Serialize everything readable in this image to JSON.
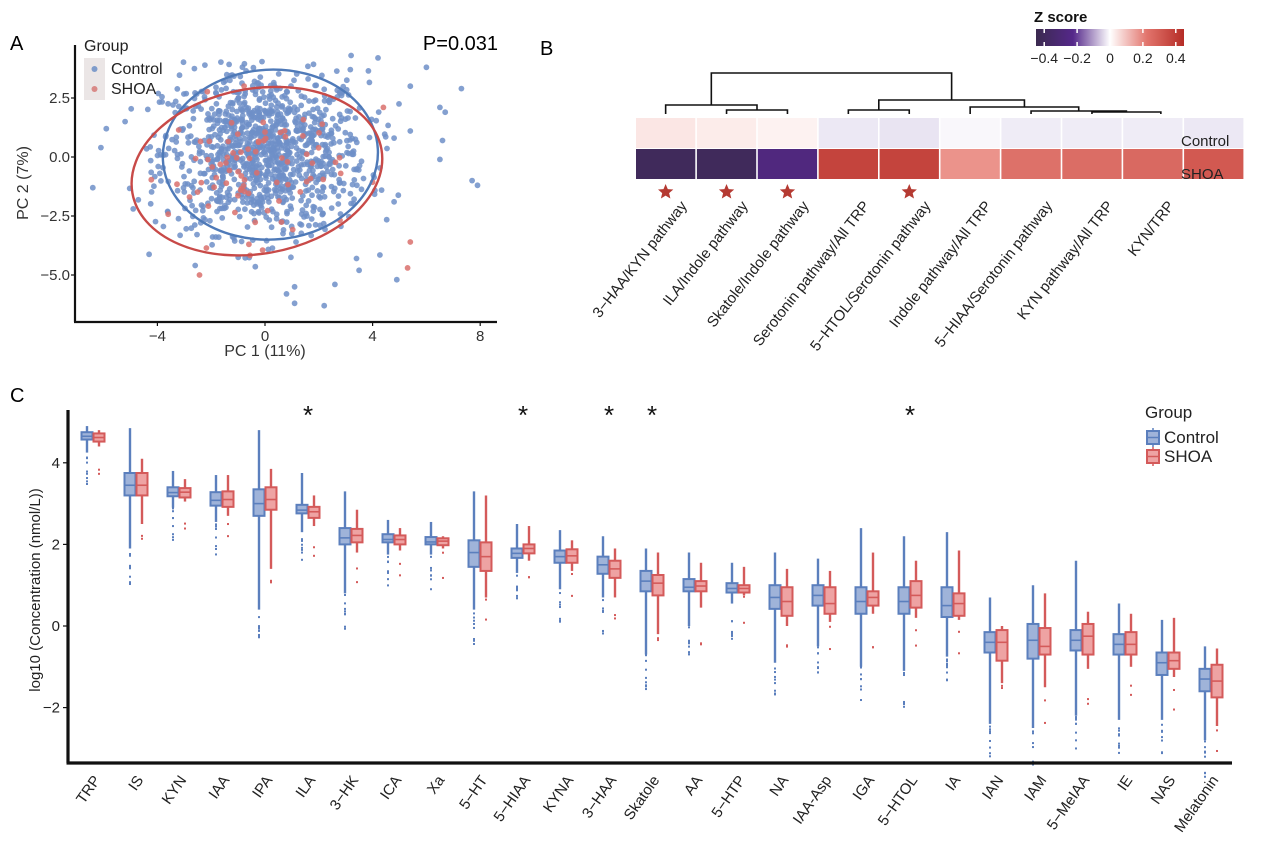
{
  "colors": {
    "control": "#5b7fbd",
    "control_fill": "#9fb3d9",
    "shoa": "#d45a5a",
    "shoa_fill": "#eea3a3",
    "star": "#b53a32",
    "axis": "#111111"
  },
  "chart_data": [
    {
      "panel_label": "A",
      "type": "scatter",
      "title": "",
      "annotation": "P=0.031",
      "xlabel": "PC 1 (11%)",
      "ylabel": "PC 2 (7%)",
      "xlim": [
        -6.8,
        8.4
      ],
      "ylim": [
        -6.9,
        4.6
      ],
      "xticks": [
        -4,
        0,
        4,
        8
      ],
      "xtick_labels": [
        "−4",
        "0",
        "4",
        "8"
      ],
      "yticks": [
        2.5,
        0.0,
        -2.5,
        -5.0
      ],
      "ytick_labels": [
        "2.5",
        "0.0",
        "−2.5",
        "−5.0"
      ],
      "grid": false,
      "legend": {
        "title": "Group",
        "position": "top-left",
        "entries": [
          "Control",
          "SHOA"
        ]
      },
      "series": [
        {
          "name": "Control",
          "approx_n": 1100,
          "center": [
            0.0,
            0.2
          ],
          "sd": [
            1.9,
            1.7
          ],
          "outliers": [
            [
              -6.4,
              -1.3
            ],
            [
              -5.9,
              1.2
            ],
            [
              -5.2,
              1.5
            ],
            [
              -4.9,
              -2.2
            ],
            [
              -6.1,
              0.4
            ],
            [
              5.4,
              3.0
            ],
            [
              6.0,
              3.8
            ],
            [
              6.5,
              2.1
            ],
            [
              6.7,
              1.9
            ],
            [
              7.3,
              2.9
            ],
            [
              7.7,
              -1.0
            ],
            [
              7.9,
              -1.2
            ],
            [
              6.6,
              0.7
            ],
            [
              6.5,
              -0.1
            ],
            [
              4.8,
              -1.9
            ],
            [
              4.9,
              -5.2
            ],
            [
              3.5,
              -4.8
            ],
            [
              1.1,
              -6.2
            ],
            [
              2.2,
              -6.3
            ],
            [
              0.8,
              -5.8
            ],
            [
              1.1,
              -5.5
            ],
            [
              2.6,
              -5.4
            ],
            [
              3.4,
              -4.3
            ],
            [
              4.2,
              4.2
            ],
            [
              3.2,
              4.3
            ],
            [
              5.4,
              1.1
            ],
            [
              4.8,
              0.8
            ]
          ]
        },
        {
          "name": "SHOA",
          "approx_n": 80,
          "center": [
            -0.4,
            -0.6
          ],
          "sd": [
            1.6,
            1.5
          ],
          "outliers": [
            [
              5.4,
              -3.6
            ],
            [
              5.3,
              -4.7
            ],
            [
              4.4,
              2.1
            ],
            [
              -0.6,
              -3.7
            ]
          ]
        }
      ],
      "ellipses": [
        {
          "group": "Control",
          "center": [
            0.2,
            0.1
          ],
          "semi_axes": [
            4.0,
            3.6
          ],
          "angle_deg": -3
        },
        {
          "group": "SHOA",
          "center": [
            -0.3,
            -0.6
          ],
          "semi_axes": [
            4.7,
            3.5
          ],
          "angle_deg": -10
        }
      ]
    },
    {
      "panel_label": "B",
      "type": "heatmap",
      "title": "",
      "rows": [
        "Control",
        "SHOA"
      ],
      "columns": [
        "3−HAA/KYN pathway",
        "ILA/Indole pathway",
        "Skatole/Indole pathway",
        "Serotonin pathway/All TRP",
        "5−HTOL/Serotonin pathway",
        "Indole pathway/All TRP",
        "5−HIAA/Serotonin pathway",
        "KYN pathway/All TRP",
        "KYN/TRP"
      ],
      "note": "10 cells per row are drawn; the first 9 correspond to the labelled columns in order and the 10th unlabelled cell",
      "values": [
        [
          0.04,
          0.03,
          0.02,
          -0.03,
          -0.035,
          -0.01,
          -0.025,
          -0.025,
          -0.025,
          -0.03
        ],
        [
          -0.42,
          -0.42,
          -0.33,
          0.38,
          0.38,
          0.18,
          0.26,
          0.27,
          0.28,
          0.32
        ]
      ],
      "significant_columns": [
        0,
        1,
        2,
        4
      ],
      "significance_marker": "star",
      "colorbar": {
        "title": "Z score",
        "range": [
          -0.45,
          0.45
        ],
        "ticks": [
          -0.4,
          -0.2,
          0,
          0.2,
          0.4
        ],
        "tick_labels": [
          "−0.4",
          "−0.2",
          "0",
          "0.2",
          "0.4"
        ],
        "low": "#3b2a4f",
        "mid_low": "#5b2a86",
        "mid": "#ffffff",
        "mid_high": "#e88e86",
        "high": "#b8302a"
      },
      "dendrogram": "column clustering shown above heatmap"
    },
    {
      "panel_label": "C",
      "type": "box",
      "title": "",
      "xlabel": "",
      "ylabel": "log10 (Concentration (nmol/L))",
      "ylim": [
        -3.3,
        5.3
      ],
      "yticks": [
        4,
        2,
        0,
        -2
      ],
      "ytick_labels": [
        "4",
        "2",
        "0",
        "−2"
      ],
      "grid": false,
      "legend": {
        "title": "Group",
        "position": "top-right",
        "entries": [
          "Control",
          "SHOA"
        ]
      },
      "categories": [
        "TRP",
        "IS",
        "KYN",
        "IAA",
        "IPA",
        "ILA",
        "3−HK",
        "ICA",
        "Xa",
        "5−HT",
        "5−HIAA",
        "KYNA",
        "3−HAA",
        "Skatole",
        "AA",
        "5−HTP",
        "NA",
        "IAA-Asp",
        "IGA",
        "5−HTOL",
        "IA",
        "IAN",
        "IAM",
        "5−MeIAA",
        "IE",
        "NAS",
        "Melatonin"
      ],
      "significant": [
        "ILA",
        "5−HIAA",
        "3−HAA",
        "Skatole",
        "5−HTOL"
      ],
      "series": [
        {
          "name": "Control",
          "median": [
            4.65,
            3.45,
            3.27,
            3.08,
            3.0,
            2.84,
            2.16,
            2.12,
            2.06,
            1.8,
            1.78,
            1.7,
            1.5,
            1.1,
            0.95,
            0.92,
            0.7,
            0.75,
            0.6,
            0.6,
            0.5,
            -0.4,
            -0.35,
            -0.35,
            -0.45,
            -0.9,
            -1.3
          ],
          "q1": [
            4.57,
            3.2,
            3.18,
            2.95,
            2.7,
            2.76,
            2.0,
            2.05,
            2.0,
            1.45,
            1.67,
            1.55,
            1.28,
            0.85,
            0.85,
            0.82,
            0.42,
            0.5,
            0.3,
            0.3,
            0.22,
            -0.65,
            -0.8,
            -0.6,
            -0.7,
            -1.2,
            -1.6
          ],
          "q3": [
            4.75,
            3.75,
            3.4,
            3.28,
            3.35,
            2.97,
            2.4,
            2.25,
            2.18,
            2.1,
            1.9,
            1.85,
            1.7,
            1.35,
            1.15,
            1.05,
            1.0,
            1.0,
            0.95,
            0.95,
            0.95,
            -0.15,
            0.05,
            -0.1,
            -0.2,
            -0.65,
            -1.05
          ],
          "whisker_low": [
            4.25,
            1.9,
            2.9,
            2.55,
            0.4,
            2.3,
            0.8,
            1.75,
            1.75,
            0.4,
            1.3,
            0.9,
            0.7,
            -0.7,
            0.0,
            0.55,
            -0.9,
            -0.5,
            -1.0,
            -1.1,
            -0.75,
            -2.4,
            -2.5,
            -2.2,
            -2.3,
            -2.3,
            -2.8
          ],
          "whisker_high": [
            4.9,
            4.85,
            3.8,
            3.7,
            4.8,
            3.75,
            3.3,
            2.6,
            2.55,
            3.3,
            2.5,
            2.35,
            2.2,
            1.9,
            1.8,
            1.55,
            1.8,
            1.65,
            2.4,
            2.2,
            2.3,
            0.7,
            1.0,
            1.6,
            0.55,
            0.15,
            -0.5
          ]
        },
        {
          "name": "SHOA",
          "median": [
            4.62,
            3.45,
            3.28,
            3.1,
            3.1,
            2.8,
            2.22,
            2.12,
            2.08,
            1.7,
            1.9,
            1.72,
            1.4,
            1.05,
            0.98,
            0.92,
            0.6,
            0.55,
            0.7,
            0.75,
            0.55,
            -0.4,
            -0.5,
            -0.25,
            -0.45,
            -0.85,
            -1.35
          ],
          "q1": [
            4.52,
            3.2,
            3.15,
            2.92,
            2.85,
            2.65,
            2.05,
            2.0,
            1.98,
            1.35,
            1.78,
            1.55,
            1.18,
            0.75,
            0.85,
            0.82,
            0.25,
            0.3,
            0.5,
            0.45,
            0.25,
            -0.85,
            -0.7,
            -0.7,
            -0.7,
            -1.05,
            -1.75
          ],
          "q3": [
            4.72,
            3.75,
            3.38,
            3.3,
            3.4,
            2.92,
            2.38,
            2.22,
            2.15,
            2.05,
            2.0,
            1.88,
            1.6,
            1.25,
            1.1,
            1.0,
            0.95,
            0.95,
            0.85,
            1.1,
            0.8,
            -0.1,
            -0.05,
            0.05,
            -0.15,
            -0.65,
            -0.95
          ],
          "whisker_low": [
            4.4,
            2.5,
            3.05,
            2.7,
            1.4,
            2.45,
            1.8,
            1.85,
            1.9,
            0.7,
            1.6,
            1.35,
            0.7,
            -0.2,
            0.45,
            0.75,
            0.0,
            0.1,
            0.3,
            0.2,
            0.15,
            -1.4,
            -1.5,
            -1.05,
            -1.0,
            -1.25,
            -2.45
          ],
          "whisker_high": [
            4.8,
            4.1,
            3.6,
            3.7,
            3.85,
            3.2,
            2.85,
            2.4,
            2.2,
            3.2,
            2.45,
            2.1,
            1.9,
            1.8,
            1.55,
            1.45,
            1.4,
            1.35,
            1.8,
            1.6,
            1.85,
            0.0,
            0.8,
            0.35,
            0.3,
            0.2,
            -0.55
          ]
        }
      ]
    }
  ]
}
